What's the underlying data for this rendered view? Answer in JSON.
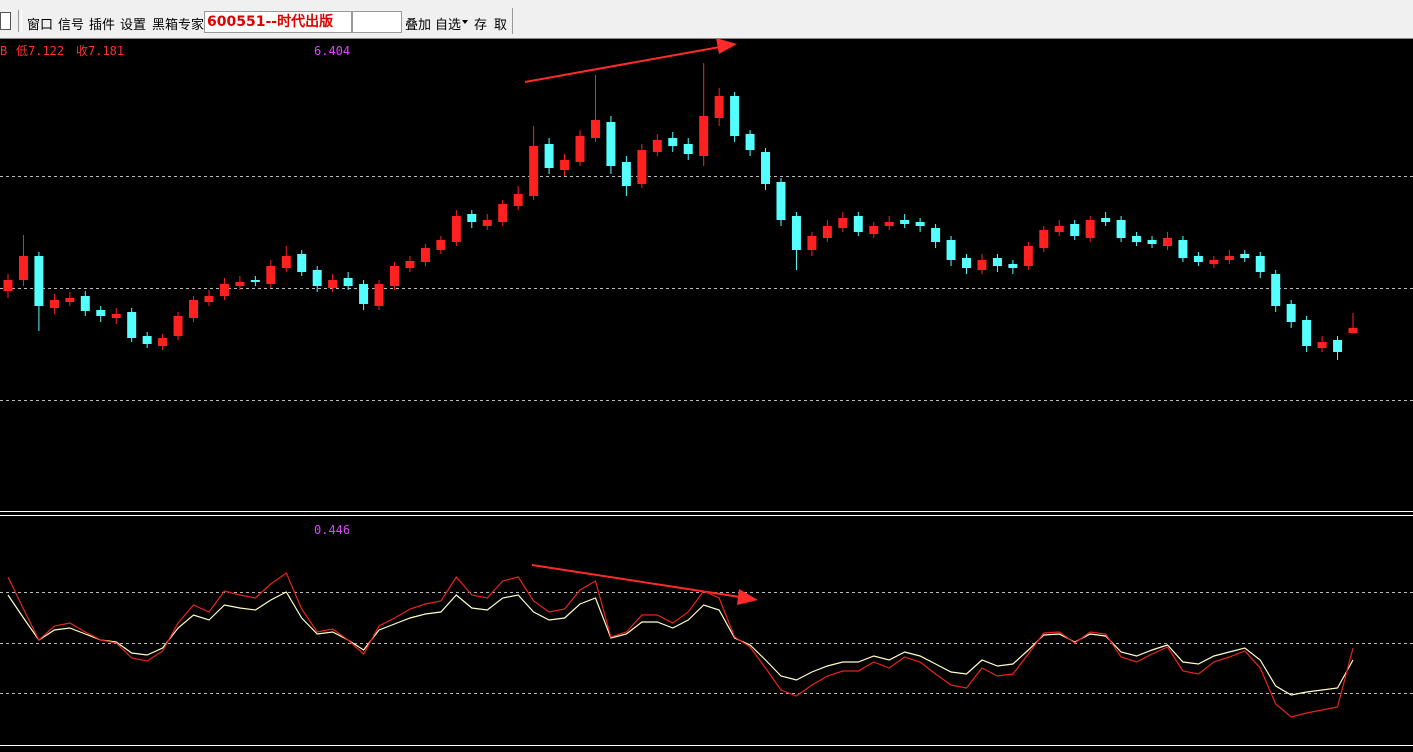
{
  "toolbar": {
    "items": [
      "窗口",
      "信号",
      "插件",
      "设置",
      "黑箱专家"
    ],
    "stock": "600551--时代出版",
    "right_items": [
      "叠加",
      "自选",
      "存",
      "取"
    ]
  },
  "chart_data": [
    {
      "type": "candlestick",
      "info": [
        "B",
        "低7.122",
        "收7.181"
      ],
      "label": "6.404",
      "up_color": "#ff2020",
      "down_color": "#54ffff",
      "ylim": [
        5.36,
        10.06
      ],
      "open": [
        7.55,
        7.66,
        7.9,
        7.38,
        7.44,
        7.5,
        7.36,
        7.28,
        7.34,
        7.1,
        7.0,
        7.1,
        7.28,
        7.44,
        7.5,
        7.6,
        7.66,
        7.62,
        7.78,
        7.92,
        7.76,
        7.58,
        7.68,
        7.62,
        7.4,
        7.6,
        7.78,
        7.84,
        7.96,
        8.04,
        8.32,
        8.2,
        8.24,
        8.4,
        8.5,
        9.02,
        8.76,
        8.84,
        9.08,
        9.24,
        8.84,
        8.62,
        8.94,
        9.08,
        9.02,
        8.9,
        9.28,
        9.5,
        9.12,
        8.94,
        8.64,
        8.3,
        7.96,
        8.08,
        8.18,
        8.3,
        8.12,
        8.2,
        8.26,
        8.24,
        8.18,
        8.06,
        7.88,
        7.76,
        7.88,
        7.82,
        7.8,
        7.98,
        8.14,
        8.22,
        8.08,
        8.28,
        8.26,
        8.1,
        8.06,
        8.0,
        8.06,
        7.9,
        7.82,
        7.86,
        7.92,
        7.9,
        7.72,
        7.42,
        7.26,
        6.98,
        7.06,
        7.13
      ],
      "high": [
        7.72,
        8.11,
        7.94,
        7.52,
        7.54,
        7.55,
        7.4,
        7.38,
        7.38,
        7.14,
        7.12,
        7.34,
        7.5,
        7.56,
        7.68,
        7.7,
        7.7,
        7.86,
        8.0,
        7.96,
        7.8,
        7.72,
        7.74,
        7.66,
        7.66,
        7.84,
        7.9,
        8.02,
        8.1,
        8.36,
        8.36,
        8.32,
        8.46,
        8.6,
        9.2,
        9.08,
        8.92,
        9.16,
        9.71,
        9.3,
        8.9,
        9.02,
        9.12,
        9.14,
        9.08,
        9.83,
        9.58,
        9.54,
        9.16,
        8.98,
        8.68,
        8.34,
        8.14,
        8.26,
        8.34,
        8.34,
        8.24,
        8.3,
        8.32,
        8.28,
        8.22,
        8.1,
        7.92,
        7.92,
        7.92,
        7.86,
        8.04,
        8.2,
        8.26,
        8.26,
        8.3,
        8.34,
        8.3,
        8.14,
        8.1,
        8.14,
        8.1,
        7.94,
        7.9,
        7.96,
        7.96,
        7.94,
        7.76,
        7.46,
        7.3,
        7.1,
        7.1,
        7.33
      ],
      "low": [
        7.48,
        7.6,
        7.15,
        7.32,
        7.4,
        7.3,
        7.24,
        7.22,
        7.04,
        6.98,
        6.96,
        7.06,
        7.24,
        7.4,
        7.46,
        7.56,
        7.6,
        7.58,
        7.74,
        7.7,
        7.54,
        7.54,
        7.56,
        7.36,
        7.36,
        7.56,
        7.74,
        7.8,
        7.92,
        8.0,
        8.18,
        8.16,
        8.2,
        8.36,
        8.46,
        8.72,
        8.7,
        8.8,
        9.04,
        8.72,
        8.5,
        8.58,
        8.9,
        8.94,
        8.86,
        8.8,
        9.2,
        9.04,
        8.9,
        8.56,
        8.2,
        7.76,
        7.9,
        8.04,
        8.14,
        8.1,
        8.08,
        8.16,
        8.18,
        8.14,
        7.98,
        7.8,
        7.72,
        7.72,
        7.74,
        7.72,
        7.76,
        7.94,
        8.1,
        8.06,
        8.04,
        8.2,
        8.04,
        8.0,
        7.98,
        7.96,
        7.84,
        7.8,
        7.78,
        7.82,
        7.84,
        7.68,
        7.34,
        7.18,
        6.94,
        6.94,
        6.86,
        7.122
      ],
      "close": [
        7.66,
        7.9,
        7.4,
        7.46,
        7.48,
        7.35,
        7.3,
        7.32,
        7.08,
        7.02,
        7.08,
        7.3,
        7.46,
        7.5,
        7.62,
        7.64,
        7.64,
        7.8,
        7.9,
        7.74,
        7.6,
        7.66,
        7.6,
        7.42,
        7.62,
        7.8,
        7.85,
        7.98,
        8.06,
        8.3,
        8.24,
        8.26,
        8.42,
        8.52,
        9.0,
        8.78,
        8.86,
        9.1,
        9.26,
        8.8,
        8.6,
        8.96,
        9.06,
        9.0,
        8.92,
        9.3,
        9.5,
        9.1,
        8.96,
        8.62,
        8.26,
        7.96,
        8.1,
        8.2,
        8.28,
        8.14,
        8.2,
        8.24,
        8.22,
        8.2,
        8.04,
        7.86,
        7.78,
        7.86,
        7.8,
        7.78,
        8.0,
        8.16,
        8.2,
        8.1,
        8.26,
        8.24,
        8.08,
        8.04,
        8.02,
        8.08,
        7.88,
        7.84,
        7.86,
        7.9,
        7.88,
        7.74,
        7.4,
        7.24,
        7.0,
        7.04,
        6.94,
        7.181
      ]
    },
    {
      "type": "line",
      "label": "0.446",
      "ylim": [
        -0.45,
        1.85
      ],
      "series": [
        {
          "color": "#ffffc8",
          "values": [
            1.05,
            0.82,
            0.6,
            0.7,
            0.72,
            0.66,
            0.6,
            0.58,
            0.47,
            0.45,
            0.52,
            0.72,
            0.85,
            0.8,
            0.95,
            0.92,
            0.9,
            1.0,
            1.08,
            0.82,
            0.66,
            0.68,
            0.6,
            0.5,
            0.7,
            0.76,
            0.82,
            0.86,
            0.88,
            1.05,
            0.92,
            0.9,
            1.02,
            1.05,
            0.88,
            0.8,
            0.82,
            0.96,
            1.02,
            0.62,
            0.66,
            0.78,
            0.78,
            0.72,
            0.8,
            0.95,
            0.9,
            0.62,
            0.55,
            0.4,
            0.24,
            0.2,
            0.28,
            0.34,
            0.38,
            0.38,
            0.44,
            0.4,
            0.48,
            0.44,
            0.36,
            0.28,
            0.26,
            0.4,
            0.34,
            0.36,
            0.5,
            0.65,
            0.66,
            0.58,
            0.66,
            0.64,
            0.48,
            0.44,
            0.5,
            0.55,
            0.38,
            0.36,
            0.44,
            0.48,
            0.52,
            0.4,
            0.14,
            0.05,
            0.08,
            0.1,
            0.12,
            0.4
          ]
        },
        {
          "color": "#e8241c",
          "values": [
            1.23,
            0.91,
            0.6,
            0.74,
            0.77,
            0.68,
            0.6,
            0.57,
            0.42,
            0.39,
            0.49,
            0.77,
            0.95,
            0.88,
            1.09,
            1.05,
            1.02,
            1.16,
            1.27,
            0.91,
            0.68,
            0.71,
            0.6,
            0.46,
            0.74,
            0.82,
            0.91,
            0.96,
            0.99,
            1.23,
            1.05,
            1.02,
            1.19,
            1.23,
            0.99,
            0.88,
            0.91,
            1.1,
            1.19,
            0.63,
            0.68,
            0.85,
            0.85,
            0.77,
            0.88,
            1.09,
            1.02,
            0.63,
            0.53,
            0.32,
            0.1,
            0.04,
            0.15,
            0.24,
            0.29,
            0.29,
            0.38,
            0.32,
            0.43,
            0.38,
            0.26,
            0.15,
            0.12,
            0.32,
            0.24,
            0.26,
            0.46,
            0.67,
            0.68,
            0.57,
            0.68,
            0.66,
            0.43,
            0.38,
            0.46,
            0.53,
            0.29,
            0.26,
            0.38,
            0.43,
            0.49,
            0.32,
            -0.04,
            -0.17,
            -0.13,
            -0.1,
            -0.07,
            0.52
          ]
        }
      ]
    }
  ]
}
